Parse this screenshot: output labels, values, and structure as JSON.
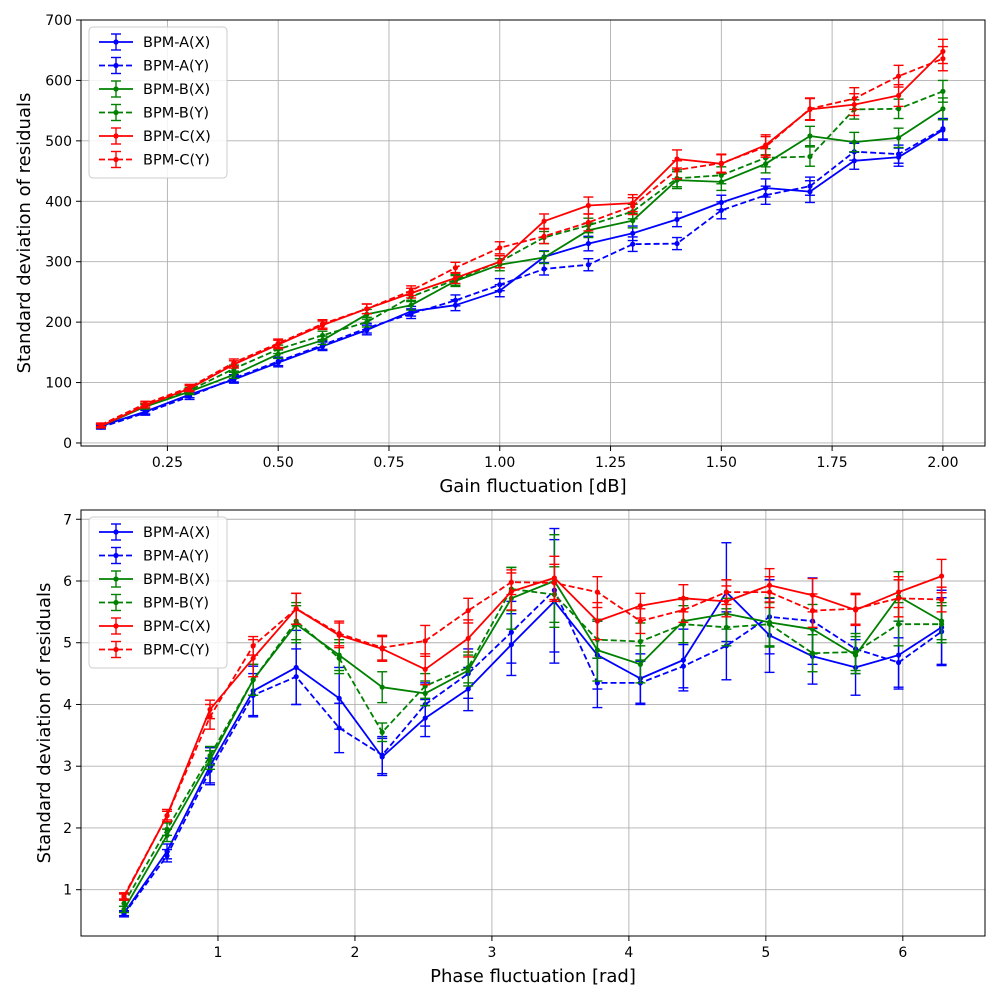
{
  "chart_data": [
    {
      "type": "line",
      "title": "",
      "xlabel": "Gain fluctuation [dB]",
      "ylabel": "Standard deviation of residuals",
      "xlim": [
        0.055,
        2.095
      ],
      "ylim": [
        -5,
        700
      ],
      "xticks": [
        0.25,
        0.5,
        0.75,
        1.0,
        1.25,
        1.5,
        1.75,
        2.0
      ],
      "xtick_labels": [
        "0.25",
        "0.50",
        "0.75",
        "1.00",
        "1.25",
        "1.50",
        "1.75",
        "2.00"
      ],
      "yticks": [
        0,
        100,
        200,
        300,
        400,
        500,
        600,
        700
      ],
      "ytick_labels": [
        "0",
        "100",
        "200",
        "300",
        "400",
        "500",
        "600",
        "700"
      ],
      "grid": true,
      "legend_position": "top-left",
      "x": [
        0.1,
        0.2,
        0.3,
        0.4,
        0.5,
        0.6,
        0.7,
        0.8,
        0.9,
        1.0,
        1.1,
        1.2,
        1.3,
        1.4,
        1.5,
        1.6,
        1.7,
        1.8,
        1.9,
        2.0
      ],
      "series": [
        {
          "name": "BPM-A(X)",
          "color": "#0000ff",
          "dash": false,
          "values": [
            28,
            52,
            80,
            105,
            133,
            160,
            187,
            218,
            228,
            252,
            308,
            330,
            347,
            370,
            398,
            422,
            416,
            467,
            473,
            518
          ],
          "errors": [
            3,
            4,
            5,
            6,
            7,
            7,
            8,
            8,
            9,
            10,
            10,
            12,
            12,
            12,
            12,
            15,
            18,
            14,
            15,
            17
          ]
        },
        {
          "name": "BPM-A(Y)",
          "color": "#0000ff",
          "dash": true,
          "values": [
            26,
            50,
            77,
            107,
            135,
            162,
            190,
            214,
            236,
            262,
            288,
            295,
            329,
            330,
            385,
            410,
            425,
            482,
            478,
            520
          ],
          "errors": [
            3,
            4,
            5,
            6,
            7,
            7,
            8,
            8,
            9,
            10,
            10,
            10,
            12,
            10,
            14,
            15,
            15,
            14,
            15,
            17
          ]
        },
        {
          "name": "BPM-B(X)",
          "color": "#008000",
          "dash": false,
          "values": [
            28,
            60,
            85,
            113,
            147,
            170,
            213,
            228,
            268,
            295,
            307,
            352,
            368,
            435,
            432,
            462,
            508,
            498,
            505,
            553
          ],
          "errors": [
            3,
            4,
            5,
            6,
            7,
            7,
            8,
            8,
            9,
            10,
            10,
            12,
            12,
            14,
            14,
            15,
            16,
            16,
            16,
            18
          ]
        },
        {
          "name": "BPM-B(Y)",
          "color": "#008000",
          "dash": true,
          "values": [
            28,
            62,
            87,
            123,
            155,
            178,
            200,
            242,
            270,
            300,
            340,
            360,
            383,
            438,
            443,
            472,
            474,
            552,
            553,
            582
          ],
          "errors": [
            3,
            4,
            5,
            6,
            7,
            7,
            8,
            8,
            9,
            10,
            10,
            12,
            12,
            14,
            14,
            15,
            16,
            16,
            16,
            18
          ]
        },
        {
          "name": "BPM-C(X)",
          "color": "#ff0000",
          "dash": false,
          "values": [
            28,
            62,
            90,
            130,
            163,
            195,
            222,
            248,
            273,
            300,
            367,
            393,
            397,
            470,
            462,
            493,
            552,
            560,
            575,
            648
          ],
          "errors": [
            3,
            4,
            5,
            6,
            7,
            7,
            8,
            8,
            9,
            10,
            12,
            14,
            14,
            15,
            15,
            17,
            18,
            18,
            18,
            20
          ]
        },
        {
          "name": "BPM-C(Y)",
          "color": "#ff0000",
          "dash": true,
          "values": [
            30,
            65,
            92,
            133,
            165,
            197,
            222,
            252,
            290,
            323,
            342,
            365,
            392,
            452,
            463,
            490,
            553,
            570,
            607,
            636
          ],
          "errors": [
            3,
            4,
            5,
            6,
            7,
            7,
            8,
            8,
            9,
            10,
            12,
            14,
            14,
            15,
            15,
            17,
            18,
            18,
            18,
            20
          ]
        }
      ]
    },
    {
      "type": "line",
      "title": "",
      "xlabel": "Phase fluctuation [rad]",
      "ylabel": "Standard deviation of residuals",
      "xlim": [
        0.0,
        6.6
      ],
      "ylim": [
        0.25,
        7.15
      ],
      "xticks": [
        1,
        2,
        3,
        4,
        5,
        6
      ],
      "xtick_labels": [
        "1",
        "2",
        "3",
        "4",
        "5",
        "6"
      ],
      "yticks": [
        1,
        2,
        3,
        4,
        5,
        6,
        7
      ],
      "ytick_labels": [
        "1",
        "2",
        "3",
        "4",
        "5",
        "6",
        "7"
      ],
      "grid": true,
      "legend_position": "top-left",
      "x": [
        0.314,
        0.628,
        0.942,
        1.257,
        1.571,
        1.885,
        2.199,
        2.513,
        2.827,
        3.142,
        3.456,
        3.77,
        4.084,
        4.398,
        4.712,
        5.027,
        5.341,
        5.655,
        5.969,
        6.283
      ],
      "series": [
        {
          "name": "BPM-A(X)",
          "color": "#0000ff",
          "dash": false,
          "values": [
            0.62,
            1.62,
            3.0,
            4.22,
            4.6,
            4.1,
            3.15,
            3.78,
            4.25,
            4.97,
            5.67,
            4.8,
            4.42,
            4.72,
            5.82,
            5.12,
            4.78,
            4.6,
            4.8,
            5.25
          ],
          "errors": [
            0.04,
            0.12,
            0.3,
            0.4,
            0.6,
            0.5,
            0.3,
            0.3,
            0.35,
            0.5,
            1.0,
            0.55,
            0.4,
            0.5,
            0.8,
            0.6,
            0.45,
            0.45,
            0.55,
            0.6
          ]
        },
        {
          "name": "BPM-A(Y)",
          "color": "#0000ff",
          "dash": true,
          "values": [
            0.6,
            1.55,
            2.93,
            4.15,
            4.45,
            3.62,
            3.18,
            4.0,
            4.5,
            5.17,
            5.85,
            4.35,
            4.35,
            4.62,
            4.95,
            5.42,
            5.35,
            4.9,
            4.68,
            5.18
          ],
          "errors": [
            0.04,
            0.1,
            0.2,
            0.35,
            0.45,
            0.4,
            0.3,
            0.35,
            0.4,
            0.5,
            1.0,
            0.4,
            0.35,
            0.35,
            0.55,
            0.6,
            0.7,
            0.4,
            0.4,
            0.55
          ]
        },
        {
          "name": "BPM-B(X)",
          "color": "#008000",
          "dash": false,
          "values": [
            0.68,
            1.88,
            3.1,
            4.4,
            5.3,
            4.8,
            4.28,
            4.18,
            4.55,
            5.72,
            6.0,
            4.88,
            4.65,
            5.35,
            5.47,
            5.33,
            5.22,
            4.8,
            5.75,
            5.35
          ],
          "errors": [
            0.05,
            0.1,
            0.15,
            0.25,
            0.3,
            0.25,
            0.25,
            0.2,
            0.25,
            0.5,
            0.75,
            0.5,
            0.3,
            0.35,
            0.25,
            0.4,
            0.4,
            0.3,
            0.4,
            0.3
          ]
        },
        {
          "name": "BPM-B(Y)",
          "color": "#008000",
          "dash": true,
          "values": [
            0.78,
            1.98,
            3.17,
            4.4,
            5.35,
            4.75,
            3.55,
            4.3,
            4.6,
            5.87,
            5.78,
            5.05,
            5.02,
            5.3,
            5.25,
            5.3,
            4.83,
            4.85,
            5.3,
            5.3
          ],
          "errors": [
            0.05,
            0.1,
            0.15,
            0.25,
            0.3,
            0.25,
            0.15,
            0.2,
            0.25,
            0.35,
            0.45,
            0.3,
            0.3,
            0.3,
            0.3,
            0.35,
            0.3,
            0.3,
            0.35,
            0.3
          ]
        },
        {
          "name": "BPM-C(X)",
          "color": "#ff0000",
          "dash": false,
          "values": [
            0.88,
            2.2,
            3.92,
            4.75,
            5.55,
            5.12,
            4.9,
            4.57,
            5.07,
            5.83,
            6.05,
            5.35,
            5.6,
            5.72,
            5.67,
            5.93,
            5.77,
            5.53,
            5.82,
            6.08
          ],
          "errors": [
            0.05,
            0.07,
            0.15,
            0.3,
            0.25,
            0.2,
            0.2,
            0.25,
            0.3,
            0.3,
            0.35,
            0.3,
            0.2,
            0.22,
            0.25,
            0.27,
            0.27,
            0.25,
            0.25,
            0.27
          ]
        },
        {
          "name": "BPM-C(Y)",
          "color": "#ff0000",
          "dash": true,
          "values": [
            0.9,
            2.2,
            3.8,
            4.95,
            5.55,
            5.15,
            4.92,
            5.03,
            5.52,
            5.98,
            5.97,
            5.82,
            5.35,
            5.53,
            5.82,
            5.82,
            5.52,
            5.55,
            5.72,
            5.7
          ],
          "errors": [
            0.05,
            0.1,
            0.2,
            0.15,
            0.25,
            0.2,
            0.2,
            0.25,
            0.2,
            0.2,
            0.3,
            0.25,
            0.2,
            0.2,
            0.2,
            0.25,
            0.27,
            0.25,
            0.3,
            0.2
          ]
        }
      ]
    }
  ]
}
